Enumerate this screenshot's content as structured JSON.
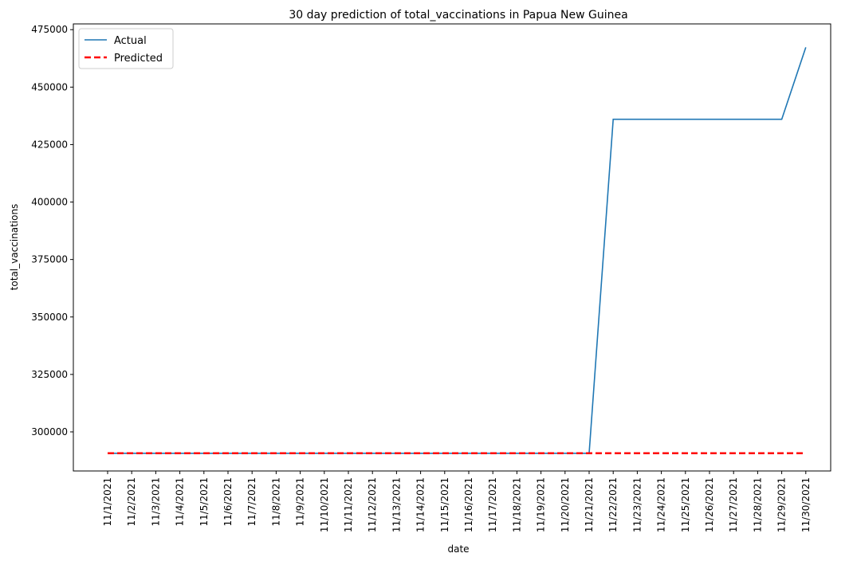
{
  "chart_data": {
    "type": "line",
    "title": "30 day prediction of total_vaccinations in Papua New Guinea",
    "xlabel": "date",
    "ylabel": "total_vaccinations",
    "x": [
      "11/1/2021",
      "11/2/2021",
      "11/3/2021",
      "11/4/2021",
      "11/5/2021",
      "11/6/2021",
      "11/7/2021",
      "11/8/2021",
      "11/9/2021",
      "11/10/2021",
      "11/11/2021",
      "11/12/2021",
      "11/13/2021",
      "11/14/2021",
      "11/15/2021",
      "11/16/2021",
      "11/17/2021",
      "11/18/2021",
      "11/19/2021",
      "11/20/2021",
      "11/21/2021",
      "11/22/2021",
      "11/23/2021",
      "11/24/2021",
      "11/25/2021",
      "11/26/2021",
      "11/27/2021",
      "11/28/2021",
      "11/29/2021",
      "11/30/2021"
    ],
    "yticks": [
      300000,
      325000,
      350000,
      375000,
      400000,
      425000,
      450000,
      475000
    ],
    "ylim": [
      283000,
      477500
    ],
    "grid": false,
    "legend_position": "top-left",
    "series": [
      {
        "name": "Actual",
        "color": "#1f77b4",
        "style": "solid",
        "values": [
          290700,
          290700,
          290700,
          290700,
          290700,
          290700,
          290700,
          290700,
          290700,
          290700,
          290700,
          290700,
          290700,
          290700,
          290700,
          290700,
          290700,
          290700,
          290700,
          290700,
          290700,
          436000,
          436000,
          436000,
          436000,
          436000,
          436000,
          436000,
          436000,
          467300
        ]
      },
      {
        "name": "Predicted",
        "color": "#ff0000",
        "style": "dashed",
        "values": [
          290700,
          290700,
          290700,
          290700,
          290700,
          290700,
          290700,
          290700,
          290700,
          290700,
          290700,
          290700,
          290700,
          290700,
          290700,
          290700,
          290700,
          290700,
          290700,
          290700,
          290700,
          290700,
          290700,
          290700,
          290700,
          290700,
          290700,
          290700,
          290700,
          290700
        ]
      }
    ]
  }
}
